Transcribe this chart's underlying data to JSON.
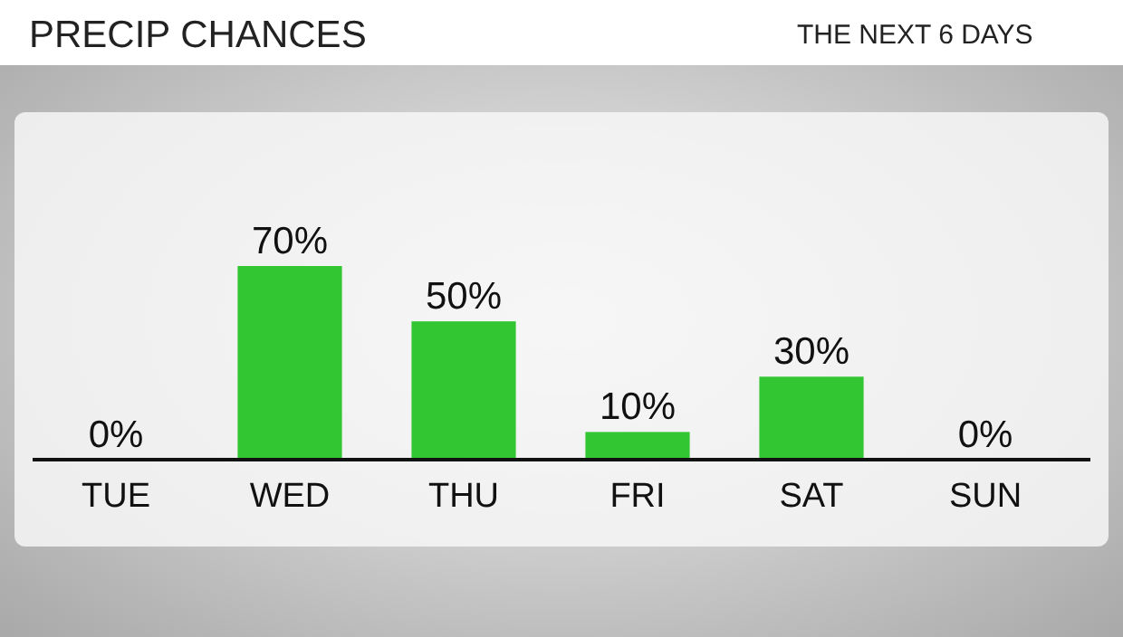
{
  "chart_data": {
    "type": "bar",
    "title": "PRECIP CHANCES",
    "subtitle": "THE NEXT 6 DAYS",
    "categories": [
      "TUE",
      "WED",
      "THU",
      "FRI",
      "SAT",
      "SUN"
    ],
    "values": [
      0,
      70,
      50,
      10,
      30,
      0
    ],
    "color": "#33c633",
    "value_labels": [
      "0%",
      "70%",
      "50%",
      "10%",
      "30%",
      "0%"
    ]
  }
}
